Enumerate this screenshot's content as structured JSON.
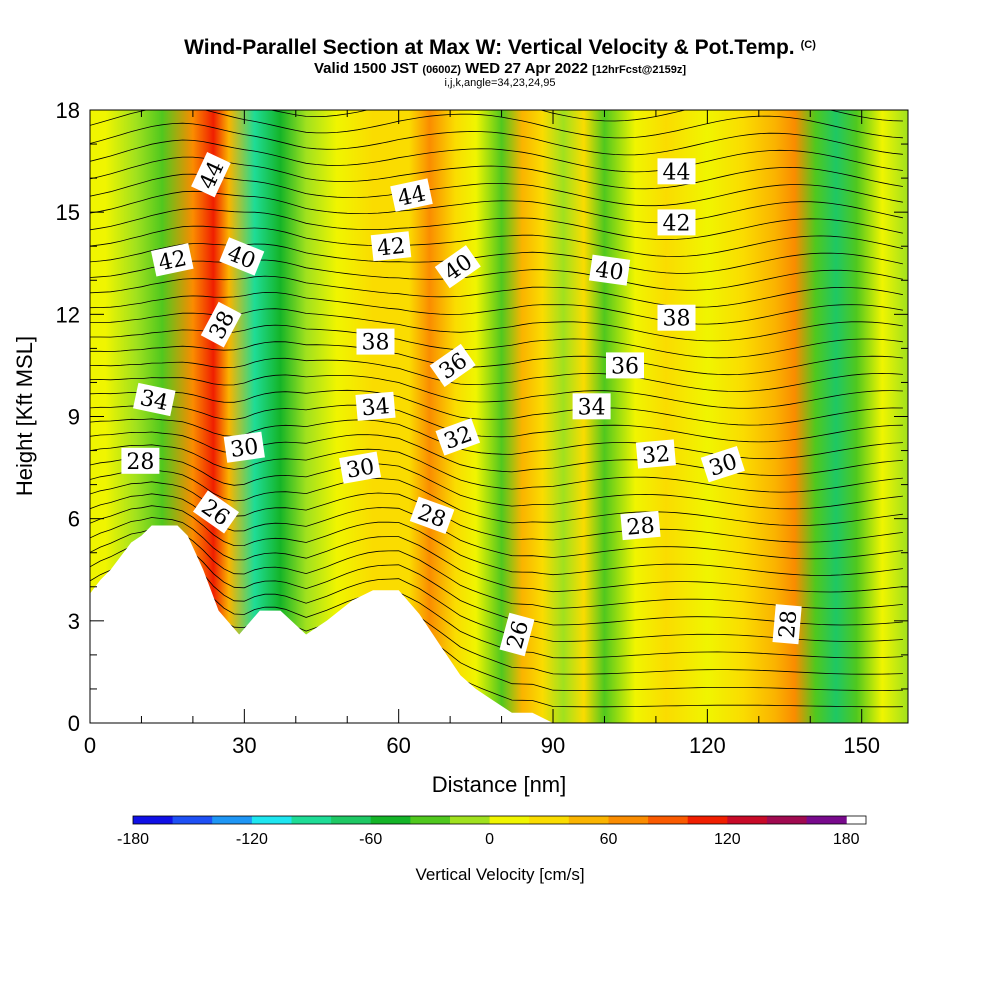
{
  "title": {
    "main": "Wind-Parallel Section at Max W: Vertical Velocity & Pot.Temp.",
    "copyright": "(C)",
    "valid_prefix": "Valid 1500 JST",
    "utc": "(0600Z)",
    "valid_date": "WED 27 Apr 2022",
    "forecast": "[12hrFcst@2159z]",
    "params": "i,j,k,angle=34,23,24,95"
  },
  "chart_data": {
    "type": "heatmap",
    "x_axis": {
      "label": "Distance [nm]",
      "range": [
        0,
        159
      ],
      "ticks": [
        0,
        30,
        60,
        90,
        120,
        150
      ],
      "tick_labels": [
        "0",
        "30",
        "60",
        "90",
        "120",
        "150"
      ]
    },
    "y_axis": {
      "label": "Height [Kft MSL]",
      "range": [
        0,
        18
      ],
      "ticks": [
        0,
        3,
        6,
        9,
        12,
        15,
        18
      ],
      "tick_labels": [
        "0",
        "3",
        "6",
        "9",
        "12",
        "15",
        "18"
      ]
    },
    "colorbar": {
      "label": "Vertical Velocity [cm/s]",
      "range": [
        -180,
        190
      ],
      "interval": 20,
      "tick_values": [
        -180,
        -120,
        -60,
        0,
        60,
        120,
        180
      ],
      "tick_labels": [
        "-180",
        "-120",
        "-60",
        "0",
        "60",
        "120",
        "180"
      ],
      "colors": [
        "#1010e6",
        "#1e50f5",
        "#1e96f5",
        "#1ee6f0",
        "#1edc96",
        "#1ec864",
        "#14b428",
        "#50c81e",
        "#a0e11e",
        "#f0f500",
        "#fadc00",
        "#fab400",
        "#fa8c00",
        "#fa5a00",
        "#f01e00",
        "#c80a28",
        "#a00a50",
        "#780a8c"
      ]
    },
    "vertical_velocity_columns": [
      {
        "x": 3,
        "w": 15
      },
      {
        "x": 9,
        "w": -10
      },
      {
        "x": 14,
        "w": -40
      },
      {
        "x": 20,
        "w": 70
      },
      {
        "x": 24,
        "w": 115
      },
      {
        "x": 27,
        "w": 40
      },
      {
        "x": 32,
        "w": -100
      },
      {
        "x": 37,
        "w": -60
      },
      {
        "x": 42,
        "w": -15
      },
      {
        "x": 48,
        "w": 5
      },
      {
        "x": 55,
        "w": 25
      },
      {
        "x": 62,
        "w": 30
      },
      {
        "x": 66,
        "w": 60
      },
      {
        "x": 71,
        "w": 30
      },
      {
        "x": 75,
        "w": 5
      },
      {
        "x": 80,
        "w": -40
      },
      {
        "x": 84,
        "w": 45
      },
      {
        "x": 88,
        "w": 20
      },
      {
        "x": 92,
        "w": -20
      },
      {
        "x": 96,
        "w": 35
      },
      {
        "x": 100,
        "w": -40
      },
      {
        "x": 106,
        "w": 15
      },
      {
        "x": 112,
        "w": 25
      },
      {
        "x": 120,
        "w": 10
      },
      {
        "x": 127,
        "w": 20
      },
      {
        "x": 133,
        "w": 45
      },
      {
        "x": 137,
        "w": 75
      },
      {
        "x": 141,
        "w": -40
      },
      {
        "x": 145,
        "w": -80
      },
      {
        "x": 149,
        "w": -25
      },
      {
        "x": 154,
        "w": 10
      },
      {
        "x": 159,
        "w": -15
      }
    ],
    "terrain_profile": [
      {
        "x": 0,
        "y": 3.8
      },
      {
        "x": 2,
        "y": 4.2
      },
      {
        "x": 4,
        "y": 4.5
      },
      {
        "x": 6,
        "y": 4.9
      },
      {
        "x": 8,
        "y": 5.3
      },
      {
        "x": 10,
        "y": 5.5
      },
      {
        "x": 12,
        "y": 5.8
      },
      {
        "x": 14,
        "y": 5.8
      },
      {
        "x": 17,
        "y": 5.8
      },
      {
        "x": 19,
        "y": 5.5
      },
      {
        "x": 22,
        "y": 4.5
      },
      {
        "x": 25,
        "y": 3.3
      },
      {
        "x": 29,
        "y": 2.6
      },
      {
        "x": 33,
        "y": 3.3
      },
      {
        "x": 37,
        "y": 3.3
      },
      {
        "x": 42,
        "y": 2.6
      },
      {
        "x": 46,
        "y": 3.0
      },
      {
        "x": 51,
        "y": 3.6
      },
      {
        "x": 55,
        "y": 3.9
      },
      {
        "x": 60,
        "y": 3.9
      },
      {
        "x": 64,
        "y": 3.2
      },
      {
        "x": 68,
        "y": 2.3
      },
      {
        "x": 72,
        "y": 1.4
      },
      {
        "x": 75,
        "y": 1.0
      },
      {
        "x": 78,
        "y": 0.7
      },
      {
        "x": 82,
        "y": 0.3
      },
      {
        "x": 86,
        "y": 0.3
      },
      {
        "x": 90,
        "y": 0
      }
    ],
    "theta_contours_labels": [
      {
        "text": "44",
        "x": 23.5,
        "y": 16.1,
        "rot": -65
      },
      {
        "text": "42",
        "x": 16,
        "y": 13.6,
        "rot": -12
      },
      {
        "text": "40",
        "x": 29.5,
        "y": 13.7,
        "rot": 22
      },
      {
        "text": "38",
        "x": 25.5,
        "y": 11.7,
        "rot": -62
      },
      {
        "text": "34",
        "x": 12.5,
        "y": 9.5,
        "rot": 12
      },
      {
        "text": "28",
        "x": 9.8,
        "y": 7.7,
        "rot": 0
      },
      {
        "text": "30",
        "x": 30,
        "y": 8.1,
        "rot": -8
      },
      {
        "text": "26",
        "x": 24.5,
        "y": 6.2,
        "rot": 35
      },
      {
        "text": "44",
        "x": 62.5,
        "y": 15.5,
        "rot": -12
      },
      {
        "text": "42",
        "x": 58.5,
        "y": 14.0,
        "rot": -6
      },
      {
        "text": "40",
        "x": 71.5,
        "y": 13.4,
        "rot": -35
      },
      {
        "text": "38",
        "x": 55.5,
        "y": 11.2,
        "rot": 0
      },
      {
        "text": "36",
        "x": 70.5,
        "y": 10.5,
        "rot": -35
      },
      {
        "text": "34",
        "x": 55.5,
        "y": 9.3,
        "rot": -5
      },
      {
        "text": "32",
        "x": 71.5,
        "y": 8.4,
        "rot": -20
      },
      {
        "text": "30",
        "x": 52.5,
        "y": 7.5,
        "rot": -10
      },
      {
        "text": "28",
        "x": 66.5,
        "y": 6.1,
        "rot": 20
      },
      {
        "text": "26",
        "x": 83,
        "y": 2.6,
        "rot": -75
      },
      {
        "text": "44",
        "x": 114,
        "y": 16.2,
        "rot": 0
      },
      {
        "text": "42",
        "x": 114,
        "y": 14.7,
        "rot": 0
      },
      {
        "text": "40",
        "x": 101,
        "y": 13.3,
        "rot": 8
      },
      {
        "text": "38",
        "x": 114,
        "y": 11.9,
        "rot": 0
      },
      {
        "text": "36",
        "x": 104,
        "y": 10.5,
        "rot": 0
      },
      {
        "text": "34",
        "x": 97.5,
        "y": 9.3,
        "rot": 0
      },
      {
        "text": "32",
        "x": 110,
        "y": 7.9,
        "rot": -5
      },
      {
        "text": "30",
        "x": 123,
        "y": 7.6,
        "rot": -18
      },
      {
        "text": "28",
        "x": 107,
        "y": 5.8,
        "rot": -5
      },
      {
        "text": "28",
        "x": 135.5,
        "y": 2.9,
        "rot": -85
      }
    ]
  }
}
